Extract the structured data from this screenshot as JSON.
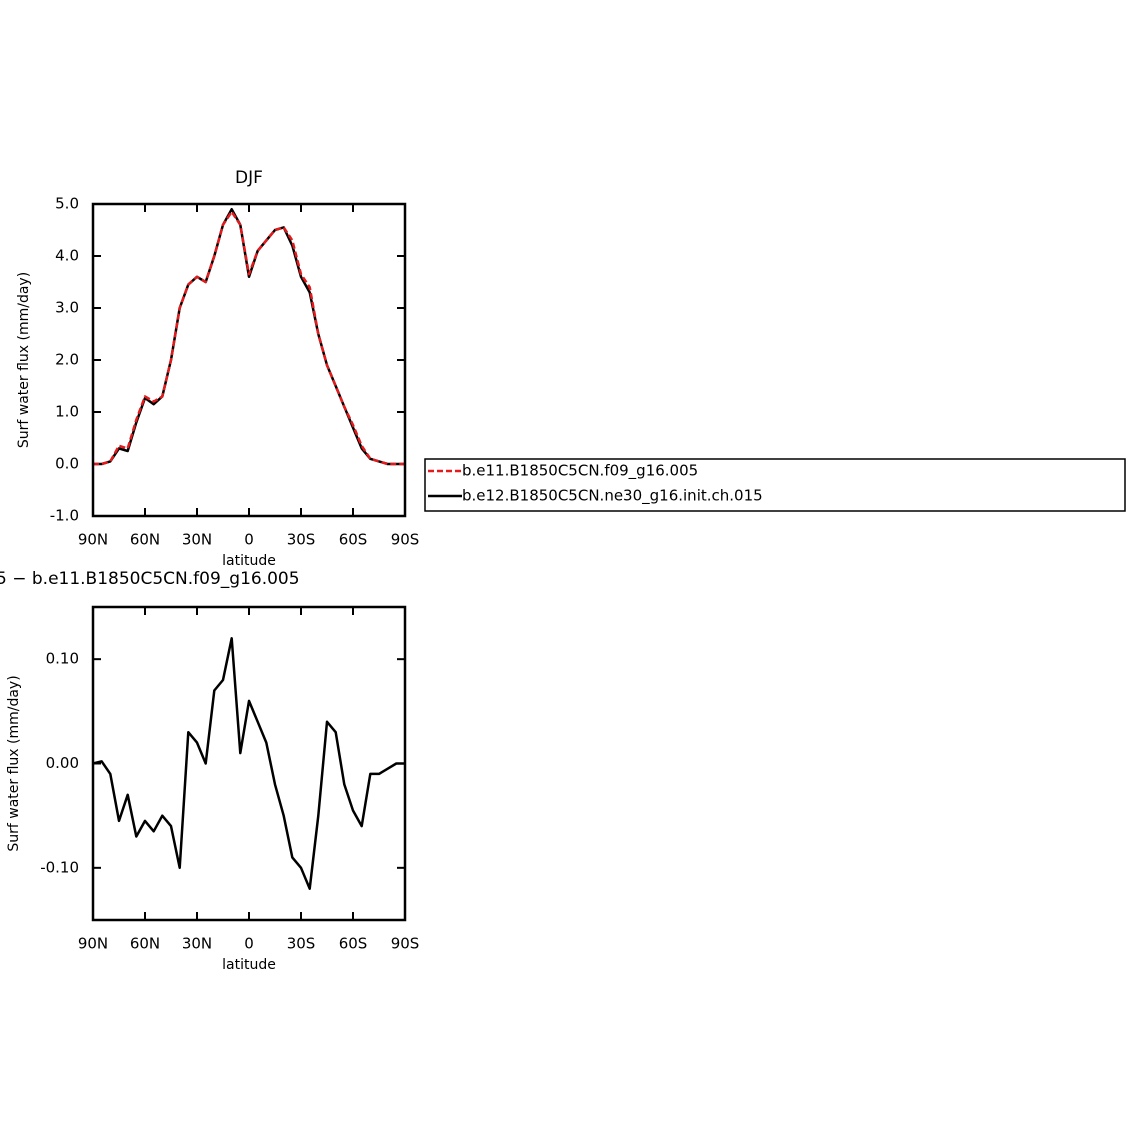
{
  "chart_data": [
    {
      "type": "line",
      "title": "DJF",
      "x_label": "latitude",
      "y_label": "Surf water flux (mm/day)",
      "x": [
        90,
        85,
        80,
        75,
        70,
        65,
        60,
        55,
        50,
        45,
        40,
        35,
        30,
        25,
        20,
        15,
        10,
        5,
        0,
        -5,
        -10,
        -15,
        -20,
        -25,
        -30,
        -35,
        -40,
        -45,
        -50,
        -55,
        -60,
        -65,
        -70,
        -75,
        -80,
        -85,
        -90
      ],
      "xlim": [
        90,
        -90
      ],
      "xticks": [
        {
          "value": 90,
          "label": "90N"
        },
        {
          "value": 60,
          "label": "60N"
        },
        {
          "value": 30,
          "label": "30N"
        },
        0,
        {
          "value": -30,
          "label": "30S"
        },
        {
          "value": -60,
          "label": "60S"
        },
        {
          "value": -90,
          "label": "90S"
        }
      ],
      "ylim": [
        -1,
        5
      ],
      "yticks": [
        {
          "value": -1,
          "label": "-1.0"
        },
        {
          "value": 0,
          "label": "0.0"
        },
        {
          "value": 1,
          "label": "1.0"
        },
        {
          "value": 2,
          "label": "2.0"
        },
        {
          "value": 3,
          "label": "3.0"
        },
        {
          "value": 4,
          "label": "4.0"
        },
        {
          "value": 5,
          "label": "5.0"
        }
      ],
      "legend": "right",
      "series": [
        {
          "name": "b.e11.B1850C5CN.f09_g16.005",
          "color": "#e41a1c",
          "line_style": "dashed",
          "values": [
            0,
            0,
            0.05,
            0.35,
            0.3,
            0.85,
            1.3,
            1.2,
            1.3,
            2.0,
            3.0,
            3.45,
            3.6,
            3.5,
            4.0,
            4.6,
            4.85,
            4.6,
            3.65,
            4.1,
            4.3,
            4.5,
            4.55,
            4.3,
            3.65,
            3.4,
            2.5,
            1.9,
            1.5,
            1.1,
            0.75,
            0.35,
            0.1,
            0.05,
            0,
            0,
            0
          ]
        },
        {
          "name": "b.e12.B1850C5CN.ne30_g16.init.ch.015",
          "color": "#000000",
          "line_style": "solid",
          "values": [
            0,
            0,
            0.05,
            0.3,
            0.25,
            0.8,
            1.27,
            1.15,
            1.3,
            2.0,
            3.0,
            3.45,
            3.6,
            3.5,
            4.0,
            4.6,
            4.9,
            4.6,
            3.6,
            4.1,
            4.3,
            4.5,
            4.55,
            4.2,
            3.6,
            3.3,
            2.5,
            1.9,
            1.5,
            1.1,
            0.7,
            0.3,
            0.1,
            0.05,
            0,
            0,
            0
          ]
        }
      ]
    },
    {
      "type": "line",
      "title": "5 − b.e11.B1850C5CN.f09_g16.005",
      "x_label": "latitude",
      "y_label": "Surf water flux (mm/day)",
      "x": [
        90,
        85,
        80,
        75,
        70,
        65,
        60,
        55,
        50,
        45,
        40,
        35,
        30,
        25,
        20,
        15,
        10,
        5,
        0,
        -5,
        -10,
        -15,
        -20,
        -25,
        -30,
        -35,
        -40,
        -45,
        -50,
        -55,
        -60,
        -65,
        -70,
        -75,
        -80,
        -85,
        -90
      ],
      "xlim": [
        90,
        -90
      ],
      "xticks": [
        {
          "value": 90,
          "label": "90N"
        },
        {
          "value": 60,
          "label": "60N"
        },
        {
          "value": 30,
          "label": "30N"
        },
        0,
        {
          "value": -30,
          "label": "30S"
        },
        {
          "value": -60,
          "label": "60S"
        },
        {
          "value": -90,
          "label": "90S"
        }
      ],
      "ylim": [
        -0.15,
        0.15
      ],
      "yticks": [
        {
          "value": -0.1,
          "label": "-0.10"
        },
        {
          "value": 0,
          "label": "0.00"
        },
        {
          "value": 0.1,
          "label": "0.10"
        }
      ],
      "series": [
        {
          "color": "#000000",
          "values": [
            0,
            0.002,
            -0.01,
            -0.055,
            -0.03,
            -0.07,
            -0.055,
            -0.065,
            -0.05,
            -0.06,
            -0.1,
            0.03,
            0.02,
            0,
            0.07,
            0.08,
            0.12,
            0.01,
            0.06,
            0.04,
            0.02,
            -0.02,
            -0.05,
            -0.09,
            -0.1,
            -0.12,
            -0.05,
            0.04,
            0.03,
            -0.02,
            -0.045,
            -0.06,
            -0.01,
            -0.01,
            -0.005,
            0,
            0
          ]
        }
      ]
    }
  ]
}
